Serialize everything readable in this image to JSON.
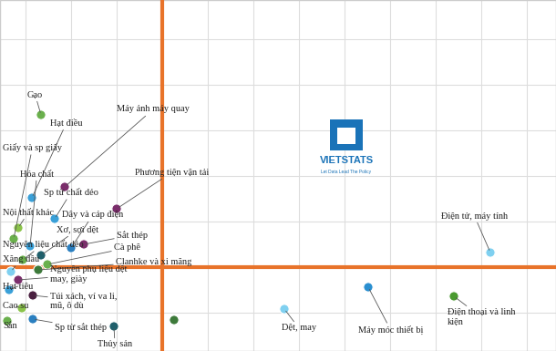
{
  "chart_data": {
    "type": "scatter",
    "marker": "circle",
    "grid": true,
    "tick_labels": false,
    "xlim": [
      -17.8,
      43.2
    ],
    "ylim": [
      -9.2,
      29.3
    ],
    "xticks": [
      -15,
      -10,
      -5,
      0,
      5,
      10,
      15,
      20,
      25,
      30,
      35,
      40
    ],
    "yticks": [
      -5,
      0,
      5,
      10,
      15,
      20,
      25
    ],
    "logo": {
      "title": "VIETSTATS",
      "subtitle": "Let Data Lead The Policy"
    },
    "points": [
      {
        "name": "Gạo",
        "x": -13.3,
        "y": 16.7,
        "color": "#6ab04c"
      },
      {
        "name": "Hạt điều",
        "x": -14.3,
        "y": 7.6,
        "color": "#3aa0d8"
      },
      {
        "name": "Giấy và sp giấy",
        "x": -16.3,
        "y": 3.1,
        "color": "#6ab04c"
      },
      {
        "name": "Hóa chất",
        "x": -14.5,
        "y": 2.3,
        "color": "#3aa0d8"
      },
      {
        "name": "Máy ảnh máy quay",
        "x": -10.7,
        "y": 8.8,
        "color": "#7b2d6b"
      },
      {
        "name": "Sp từ chất dẻo",
        "x": -11.8,
        "y": 5.3,
        "color": "#3aa0d8"
      },
      {
        "name": "Phương tiện vận tải",
        "x": -5.0,
        "y": 6.4,
        "color": "#7b2d6b"
      },
      {
        "name": "Nội thất khác",
        "x": -15.8,
        "y": 4.3,
        "color": "#8bc34a"
      },
      {
        "name": "Dây và cáp điện",
        "x": -10.0,
        "y": 2.1,
        "color": "#2a7fc0"
      },
      {
        "name": "Điện tử, máy tính",
        "x": 36.0,
        "y": 1.6,
        "color": "#7fd0f0"
      },
      {
        "name": "Nguyên liệu chất dẻo",
        "x": -15.3,
        "y": 0.8,
        "color": "#6ab04c"
      },
      {
        "name": "Xơ, sợi dệt",
        "x": -13.3,
        "y": 1.3,
        "color": "#1f5f6b"
      },
      {
        "name": "Sắt thép",
        "x": -8.6,
        "y": 2.5,
        "color": "#7b2d6b"
      },
      {
        "name": "Cà phê",
        "x": -12.6,
        "y": 0.3,
        "color": "#6ab04c"
      },
      {
        "name": "Xăng dầu",
        "x": -16.6,
        "y": -0.5,
        "color": "#7fd0f0"
      },
      {
        "name": "Clanhke và xi măng",
        "x": -13.6,
        "y": -0.3,
        "color": "#3d7a3a"
      },
      {
        "name": "Nguyên phụ liệu dệt\nmay, giày",
        "x": -15.8,
        "y": -1.4,
        "color": "#7b2d6b"
      },
      {
        "name": "Hạt tiêu",
        "x": -16.8,
        "y": -2.5,
        "color": "#3aa0d8"
      },
      {
        "name": "Túi xách, ví va li,\nmũ, ô dù",
        "x": -14.2,
        "y": -3.1,
        "color": "#4a2040"
      },
      {
        "name": "Cao su",
        "x": -15.4,
        "y": -4.5,
        "color": "#8bc34a"
      },
      {
        "name": "Sắn",
        "x": -17.0,
        "y": -5.9,
        "color": "#6ab04c"
      },
      {
        "name": "Sp từ sắt thép",
        "x": -14.2,
        "y": -5.7,
        "color": "#2a7fc0"
      },
      {
        "name": "Thủy sản",
        "x": -5.3,
        "y": -6.5,
        "color": "#1f5f6b"
      },
      {
        "name": "Dệt, may",
        "x": 13.4,
        "y": -4.6,
        "color": "#7fd0f0"
      },
      {
        "name": "Máy móc thiết bị",
        "x": 22.6,
        "y": -2.2,
        "color": "#2a8fd0"
      },
      {
        "name": "Điện thoại và linh\nkiện",
        "x": 32.0,
        "y": -3.2,
        "color": "#4a9a30"
      },
      {
        "name": null,
        "x": 1.3,
        "y": -5.8,
        "color": "#3d7a3a"
      }
    ]
  }
}
